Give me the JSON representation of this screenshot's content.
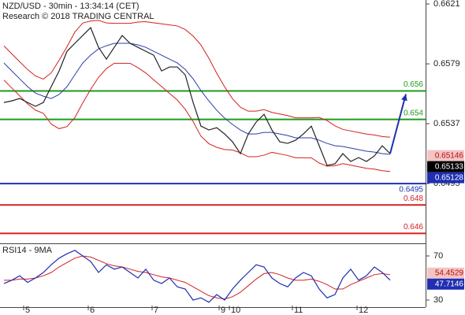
{
  "chart_data": [
    {
      "type": "line",
      "title": "NZD/USD - 30min - 13:34:14 (CET)",
      "subtitle": "Research © 2018 TRADING CENTRAL",
      "xlim": [
        -0.5,
        53.5
      ],
      "ylim": [
        0.64536,
        0.66238
      ],
      "yticks": [
        0.6621,
        0.6579,
        0.6537,
        0.6495
      ],
      "series": [
        {
          "color": "#222222",
          "values": [
            0.65519,
            0.6553,
            0.65547,
            0.65519,
            0.65492,
            0.65519,
            0.6563,
            0.6574,
            0.65878,
            0.65934,
            0.65989,
            0.66044,
            0.65906,
            0.65823,
            0.65906,
            0.65989,
            0.65934,
            0.65906,
            0.65878,
            0.65851,
            0.6574,
            0.65768,
            0.65768,
            0.65713,
            0.65519,
            0.65353,
            0.65326,
            0.65342,
            0.65298,
            0.65243,
            0.6516,
            0.65298,
            0.65381,
            0.65436,
            0.65326,
            0.65243,
            0.65232,
            0.65254,
            0.65298,
            0.65353,
            0.65215,
            0.65077,
            0.65088,
            0.6516,
            0.65105,
            0.65132,
            0.65105,
            0.65144,
            0.65215,
            0.6516
          ]
        },
        {
          "color": "#2b3fa8",
          "values": [
            0.65796,
            0.6574,
            0.65685,
            0.6563,
            0.65585,
            0.65563,
            0.65547,
            0.65575,
            0.6563,
            0.65713,
            0.65796,
            0.65851,
            0.65895,
            0.65917,
            0.65934,
            0.65934,
            0.65934,
            0.65923,
            0.65906,
            0.65878,
            0.65851,
            0.65823,
            0.65796,
            0.65751,
            0.65685,
            0.65602,
            0.6553,
            0.65464,
            0.65409,
            0.65365,
            0.65326,
            0.65298,
            0.65298,
            0.65309,
            0.65309,
            0.65298,
            0.65287,
            0.65271,
            0.65271,
            0.65271,
            0.65254,
            0.65232,
            0.65215,
            0.6521,
            0.65199,
            0.65188,
            0.65177,
            0.65171,
            0.6516,
            0.65155
          ]
        },
        {
          "color": "#d42020",
          "values": [
            0.65916,
            0.6586,
            0.65805,
            0.6575,
            0.65705,
            0.65683,
            0.65727,
            0.65815,
            0.6591,
            0.66013,
            0.66076,
            0.66091,
            0.66095,
            0.66077,
            0.66074,
            0.66074,
            0.66074,
            0.66083,
            0.66086,
            0.66078,
            0.66071,
            0.66063,
            0.66056,
            0.66031,
            0.65985,
            0.65922,
            0.6583,
            0.65724,
            0.65629,
            0.65545,
            0.65486,
            0.65458,
            0.65458,
            0.65469,
            0.65449,
            0.65438,
            0.65427,
            0.65411,
            0.65411,
            0.65411,
            0.65414,
            0.65392,
            0.65355,
            0.6533,
            0.65319,
            0.65308,
            0.65297,
            0.65291,
            0.6528,
            0.65275
          ]
        },
        {
          "color": "#d42020",
          "values": [
            0.65676,
            0.6562,
            0.65565,
            0.6551,
            0.65465,
            0.65443,
            0.65367,
            0.65335,
            0.6535,
            0.65413,
            0.65516,
            0.65611,
            0.65695,
            0.65757,
            0.65794,
            0.65794,
            0.65794,
            0.65763,
            0.65726,
            0.65678,
            0.65631,
            0.65583,
            0.65536,
            0.65471,
            0.65385,
            0.65282,
            0.6523,
            0.65204,
            0.65189,
            0.65185,
            0.65166,
            0.65138,
            0.65138,
            0.65149,
            0.65169,
            0.65158,
            0.65147,
            0.65131,
            0.65131,
            0.65131,
            0.65094,
            0.65072,
            0.65075,
            0.6509,
            0.65079,
            0.65068,
            0.65057,
            0.65051,
            0.6504,
            0.65035
          ]
        }
      ],
      "levels": [
        {
          "value": 0.656,
          "color": "#1f9a1f"
        },
        {
          "value": 0.654,
          "color": "#1f9a1f"
        },
        {
          "value": 0.6495,
          "color": "#1f2fb0"
        },
        {
          "value": 0.648,
          "color": "#d42020"
        },
        {
          "value": 0.646,
          "color": "#d42020"
        }
      ],
      "price_labels": [
        {
          "value": 0.65146,
          "color": "#f4c4c4",
          "text_color": "#b01010"
        },
        {
          "value": 0.65133,
          "color": "#000000",
          "text_color": "#ffffff"
        },
        {
          "value": 0.65128,
          "color": "#1f2fb0",
          "text_color": "#ffffff"
        }
      ],
      "arrow_color": "#1f2fb0"
    },
    {
      "type": "line",
      "title": "RSI14 - 9MA",
      "xlim": [
        -0.5,
        53.5
      ],
      "ylim": [
        23.6,
        80.7
      ],
      "yticks": [
        70,
        30
      ],
      "xticks": [
        {
          "value": 2.5,
          "label": "5"
        },
        {
          "value": 10.7,
          "label": "6"
        },
        {
          "value": 18.8,
          "label": "7"
        },
        {
          "value": 27.3,
          "label": "9"
        },
        {
          "value": 28.6,
          "label": "10"
        },
        {
          "value": 36.6,
          "label": "11"
        },
        {
          "value": 44.8,
          "label": "12"
        }
      ],
      "series": [
        {
          "color": "#1f2fb0",
          "values": [
            45,
            48,
            52,
            46,
            50,
            55,
            62,
            68,
            72,
            75,
            70,
            65,
            55,
            62,
            58,
            60,
            55,
            50,
            58,
            48,
            45,
            50,
            42,
            40,
            30,
            32,
            28,
            35,
            30,
            40,
            48,
            55,
            62,
            60,
            50,
            45,
            42,
            50,
            55,
            52,
            40,
            32,
            35,
            50,
            58,
            48,
            52,
            60,
            55,
            48
          ]
        },
        {
          "color": "#d42020",
          "values": [
            48,
            48,
            49,
            49,
            50,
            52,
            55,
            60,
            64,
            68,
            70,
            69,
            66,
            63,
            61,
            60,
            58,
            56,
            55,
            53,
            51,
            50,
            48,
            46,
            42,
            38,
            34,
            32,
            31,
            33,
            37,
            43,
            49,
            54,
            55,
            53,
            50,
            48,
            48,
            49,
            47,
            44,
            40,
            40,
            44,
            47,
            50,
            53,
            54,
            53
          ]
        }
      ],
      "value_labels": [
        {
          "value": 54.4529,
          "color": "#f4c4c4",
          "text_color": "#b01010"
        },
        {
          "value": 47.7146,
          "color": "#1f2fb0",
          "text_color": "#ffffff"
        }
      ]
    }
  ]
}
